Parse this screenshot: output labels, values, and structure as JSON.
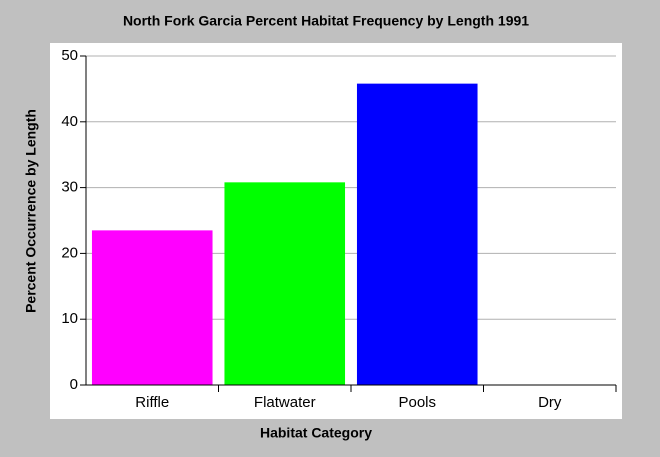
{
  "chart_data": {
    "type": "bar",
    "title": "North Fork Garcia Percent Habitat Frequency by Length 1991",
    "x_label": "Habitat Category",
    "y_label": "Percent Occurrence by Length",
    "categories": [
      "Riffle",
      "Flatwater",
      "Pools",
      "Dry"
    ],
    "values": [
      23.5,
      30.8,
      45.8,
      0
    ],
    "colors": [
      "#ff00ff",
      "#00ff00",
      "#0000ff"
    ],
    "ylim": [
      0,
      50
    ],
    "yticks": [
      0,
      10,
      20,
      30,
      40,
      50
    ],
    "grid": true
  }
}
